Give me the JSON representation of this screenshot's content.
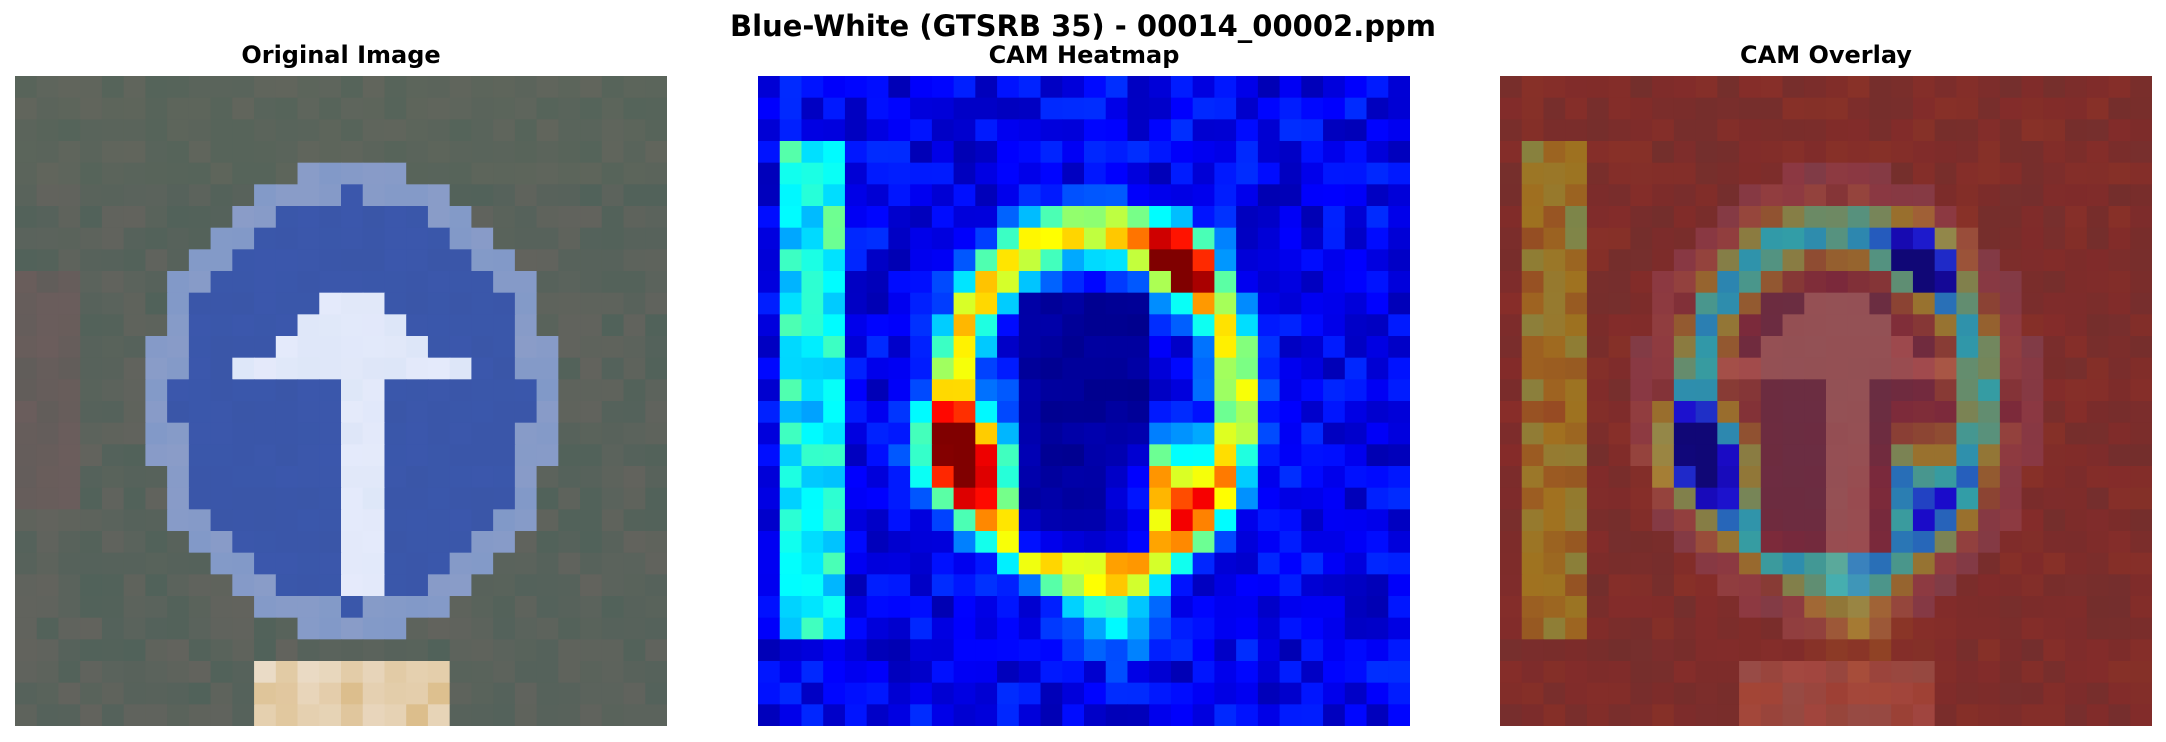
{
  "figure": {
    "title": "Blue-White (GTSRB 35) - 00014_00002.ppm"
  },
  "panels": [
    {
      "title": "Original Image"
    },
    {
      "title": "CAM Heatmap"
    },
    {
      "title": "CAM Overlay"
    }
  ],
  "colors": {
    "background": "#ffffff",
    "sign_blue": "#3a56a8",
    "sign_ring": "#8a9cc8",
    "arrow_white": "#dde6f8",
    "foliage": "#51625a",
    "heatmap_low": "#00008f",
    "heatmap_high": "#800000",
    "overlay_base": "#7a2020"
  },
  "colormap": "jet"
}
